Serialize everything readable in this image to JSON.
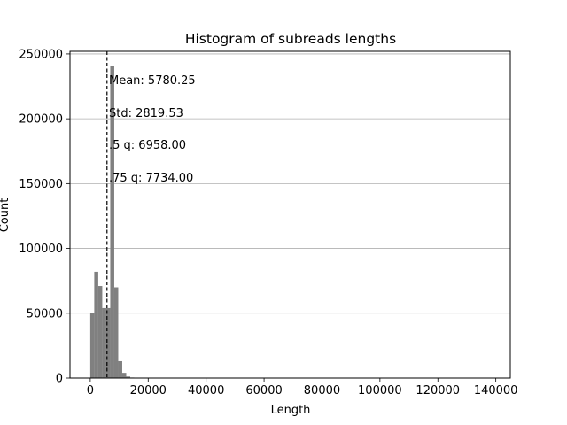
{
  "chart_data": {
    "type": "bar",
    "title": "Histogram of subreads lengths",
    "xlabel": "Length",
    "ylabel": "Count",
    "xlim": [
      -7000,
      145000
    ],
    "ylim": [
      0,
      252000
    ],
    "xticks": [
      0,
      20000,
      40000,
      60000,
      80000,
      100000,
      120000,
      140000
    ],
    "yticks": [
      0,
      50000,
      100000,
      150000,
      200000,
      250000
    ],
    "grid": "y",
    "bar_color": "#808080",
    "bin_width": 1380,
    "bins": [
      {
        "x": 0,
        "count": 50000
      },
      {
        "x": 1380,
        "count": 82000
      },
      {
        "x": 2760,
        "count": 71000
      },
      {
        "x": 4140,
        "count": 54000
      },
      {
        "x": 5520,
        "count": 54000
      },
      {
        "x": 6900,
        "count": 241000
      },
      {
        "x": 8280,
        "count": 70000
      },
      {
        "x": 9660,
        "count": 13000
      },
      {
        "x": 11040,
        "count": 4000
      },
      {
        "x": 12420,
        "count": 1200
      },
      {
        "x": 13800,
        "count": 400
      },
      {
        "x": 15180,
        "count": 150
      },
      {
        "x": 16560,
        "count": 60
      }
    ],
    "mean_line": 5780.25,
    "annotations": [
      "Mean: 5780.25",
      "Std: 2819.53",
      ".5 q: 6958.00",
      ".75 q: 7734.00"
    ]
  }
}
